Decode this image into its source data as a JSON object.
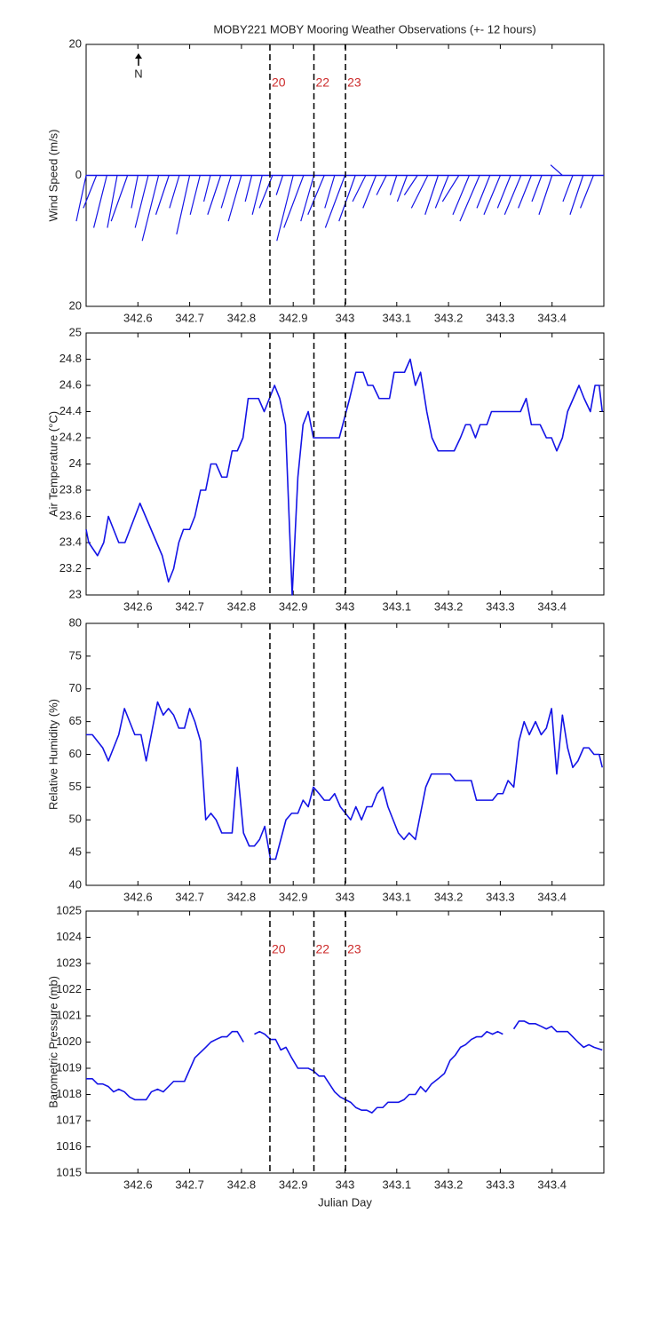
{
  "chart_data": [
    {
      "type": "stick",
      "title": "MOBY221 MOBY Mooring Weather Observations (+- 12 hours)",
      "ylabel": "Wind Speed (m/s)",
      "annotation": "N",
      "color": "#1414e6",
      "xlim": [
        342.5,
        343.5
      ],
      "xticks": [
        342.6,
        342.7,
        342.8,
        342.9,
        343,
        343.1,
        343.2,
        343.3,
        343.4
      ],
      "ylim": [
        -20,
        20
      ],
      "yticks": [
        20,
        0,
        {
          "value": -20,
          "label": "20"
        }
      ],
      "events": {
        "x": [
          342.855,
          342.94,
          343.001
        ],
        "labels": [
          "20",
          "22",
          "23"
        ],
        "color": "#cc2a2a"
      },
      "x": [
        342.5,
        342.52,
        342.54,
        342.56,
        342.58,
        342.6,
        342.62,
        342.64,
        342.66,
        342.68,
        342.7,
        342.72,
        342.74,
        342.76,
        342.78,
        342.8,
        342.82,
        342.84,
        342.86,
        342.88,
        342.9,
        342.92,
        342.94,
        342.96,
        342.98,
        343,
        343.02,
        343.04,
        343.06,
        343.08,
        343.1,
        343.12,
        343.14,
        343.16,
        343.18,
        343.2,
        343.22,
        343.24,
        343.26,
        343.28,
        343.3,
        343.32,
        343.34,
        343.36,
        343.38,
        343.4,
        343.42,
        343.44,
        343.46,
        343.48
      ],
      "u": [
        -1.5,
        -2,
        -2,
        -1.5,
        -2.5,
        -1,
        -2,
        -2.5,
        -2,
        -1.5,
        -2,
        -1.5,
        -1,
        -2,
        -1.5,
        -2,
        -1,
        -1.5,
        -2,
        -1,
        -2.5,
        -3,
        -2,
        -2.5,
        -1.5,
        -3,
        -2.5,
        -2,
        -2,
        -1.5,
        -1,
        -1.5,
        -2,
        -2.5,
        -2,
        -2,
        -2.5,
        -2.5,
        -3,
        -2,
        -2.5,
        -2,
        -2.5,
        -2,
        -1.5,
        -2,
        -1.8,
        -1.5,
        -2,
        -2
      ],
      "v": [
        -7,
        -5,
        -8,
        -8,
        -7,
        -5,
        -8,
        -10,
        -6,
        -5,
        -9,
        -6,
        -4,
        -6,
        -5,
        -7,
        -4,
        -6,
        -5,
        -3,
        -10,
        -8,
        -7,
        -6,
        -5,
        -8,
        -7,
        -4,
        -5,
        -3,
        -3,
        -4,
        -3,
        -5,
        -6,
        -5,
        -4,
        -6,
        -7,
        -5,
        -6,
        -5,
        -6,
        -5,
        -4,
        -6,
        1.6,
        -4,
        -6,
        -5
      ]
    },
    {
      "type": "line",
      "ylabel": "Air Temperature (°C)",
      "color": "#1414e6",
      "xlim": [
        342.5,
        343.5
      ],
      "xticks": [
        342.6,
        342.7,
        342.8,
        342.9,
        343,
        343.1,
        343.2,
        343.3,
        343.4
      ],
      "ylim": [
        23,
        25
      ],
      "yticks": [
        23,
        23.2,
        23.4,
        23.6,
        23.8,
        24,
        24.2,
        24.4,
        24.6,
        24.8,
        25
      ],
      "events": {
        "x": [
          342.855,
          342.94,
          343.001
        ]
      },
      "x": [
        342.5,
        342.505,
        342.522,
        342.534,
        342.543,
        342.553,
        342.563,
        342.575,
        342.604,
        342.647,
        342.659,
        342.669,
        342.679,
        342.688,
        342.7,
        342.71,
        342.721,
        342.731,
        342.741,
        342.751,
        342.762,
        342.772,
        342.782,
        342.792,
        342.803,
        342.813,
        342.833,
        342.844,
        342.864,
        342.874,
        342.885,
        342.898,
        342.909,
        342.919,
        342.929,
        342.939,
        342.989,
        343.009,
        343.021,
        343.035,
        343.044,
        343.054,
        343.066,
        343.086,
        343.095,
        343.115,
        343.126,
        343.136,
        343.146,
        343.158,
        343.168,
        343.18,
        343.211,
        343.223,
        343.233,
        343.242,
        343.252,
        343.261,
        343.274,
        343.283,
        343.339,
        343.35,
        343.36,
        343.377,
        343.389,
        343.399,
        343.409,
        343.42,
        343.43,
        343.452,
        343.462,
        343.474,
        343.483,
        343.491,
        343.497
      ],
      "values": [
        23.5,
        23.4,
        23.3,
        23.4,
        23.6,
        23.5,
        23.4,
        23.4,
        23.7,
        23.3,
        23.1,
        23.2,
        23.4,
        23.5,
        23.5,
        23.6,
        23.8,
        23.8,
        24.0,
        24.0,
        23.9,
        23.9,
        24.1,
        24.1,
        24.2,
        24.5,
        24.5,
        24.4,
        24.6,
        24.5,
        24.3,
        23.0,
        23.9,
        24.3,
        24.4,
        24.2,
        24.2,
        24.5,
        24.7,
        24.7,
        24.6,
        24.6,
        24.5,
        24.5,
        24.7,
        24.7,
        24.8,
        24.6,
        24.7,
        24.4,
        24.2,
        24.1,
        24.1,
        24.2,
        24.3,
        24.3,
        24.2,
        24.3,
        24.3,
        24.4,
        24.4,
        24.5,
        24.3,
        24.3,
        24.2,
        24.2,
        24.1,
        24.2,
        24.4,
        24.6,
        24.5,
        24.4,
        24.6,
        24.6,
        24.4
      ]
    },
    {
      "type": "line",
      "ylabel": "Relative Humidity (%)",
      "color": "#1414e6",
      "xlim": [
        342.5,
        343.5
      ],
      "xticks": [
        342.6,
        342.7,
        342.8,
        342.9,
        343,
        343.1,
        343.2,
        343.3,
        343.4
      ],
      "ylim": [
        40,
        80
      ],
      "yticks": [
        40,
        45,
        50,
        55,
        60,
        65,
        70,
        75,
        80
      ],
      "events": {
        "x": [
          342.855,
          342.94,
          343.001
        ]
      },
      "x": [
        342.5,
        342.512,
        342.532,
        342.543,
        342.553,
        342.563,
        342.574,
        342.594,
        342.606,
        342.616,
        342.638,
        342.649,
        342.659,
        342.669,
        342.679,
        342.69,
        342.7,
        342.71,
        342.721,
        342.731,
        342.741,
        342.751,
        342.762,
        342.782,
        342.792,
        342.804,
        342.815,
        342.825,
        342.835,
        342.845,
        342.856,
        342.866,
        342.876,
        342.886,
        342.897,
        342.909,
        342.919,
        342.929,
        342.939,
        342.95,
        342.96,
        342.97,
        342.98,
        342.991,
        343.001,
        343.011,
        343.021,
        343.032,
        343.042,
        343.052,
        343.062,
        343.073,
        343.083,
        343.093,
        343.103,
        343.114,
        343.124,
        343.136,
        343.146,
        343.156,
        343.167,
        343.203,
        343.213,
        343.244,
        343.254,
        343.285,
        343.295,
        343.305,
        343.315,
        343.326,
        343.336,
        343.346,
        343.356,
        343.368,
        343.379,
        343.389,
        343.399,
        343.409,
        343.42,
        343.43,
        343.44,
        343.45,
        343.461,
        343.471,
        343.481,
        343.491,
        343.497
      ],
      "values": [
        63,
        63,
        61,
        59,
        61,
        63,
        67,
        63,
        63,
        59,
        68,
        66,
        67,
        66,
        64,
        64,
        67,
        65,
        62,
        50,
        51,
        50,
        48,
        48,
        58,
        48,
        46,
        46,
        47,
        49,
        44,
        44,
        47,
        50,
        51,
        51,
        53,
        52,
        55,
        54,
        53,
        53,
        54,
        52,
        51,
        50,
        52,
        50,
        52,
        52,
        54,
        55,
        52,
        50,
        48,
        47,
        48,
        47,
        51,
        55,
        57,
        57,
        56,
        56,
        53,
        53,
        54,
        54,
        56,
        55,
        62,
        65,
        63,
        65,
        63,
        64,
        67,
        57,
        66,
        61,
        58,
        59,
        61,
        61,
        60,
        60,
        58
      ]
    },
    {
      "type": "line",
      "ylabel": "Barometric Pressure (mb)",
      "xlabel": "Julian Day",
      "color": "#1414e6",
      "xlim": [
        342.5,
        343.5
      ],
      "xticks": [
        342.6,
        342.7,
        342.8,
        342.9,
        343,
        343.1,
        343.2,
        343.3,
        343.4
      ],
      "ylim": [
        1015,
        1025
      ],
      "yticks": [
        1015,
        1016,
        1017,
        1018,
        1019,
        1020,
        1021,
        1022,
        1023,
        1024,
        1025
      ],
      "events": {
        "x": [
          342.855,
          342.94,
          343.001
        ],
        "labels": [
          "20",
          "22",
          "23"
        ],
        "color": "#cc2a2a"
      },
      "x": [
        342.5,
        342.512,
        342.522,
        342.532,
        342.543,
        342.553,
        342.563,
        342.574,
        342.584,
        342.594,
        342.616,
        342.626,
        342.638,
        342.649,
        342.669,
        342.69,
        342.71,
        342.731,
        342.741,
        342.751,
        342.762,
        342.772,
        342.782,
        342.792,
        342.804,
        342.815,
        342.825,
        342.835,
        342.845,
        342.856,
        342.866,
        342.876,
        342.886,
        342.897,
        342.909,
        342.929,
        342.939,
        342.95,
        342.96,
        342.97,
        342.98,
        342.991,
        343.001,
        343.011,
        343.021,
        343.032,
        343.042,
        343.052,
        343.062,
        343.073,
        343.083,
        343.103,
        343.114,
        343.124,
        343.136,
        343.146,
        343.156,
        343.167,
        343.18,
        343.192,
        343.203,
        343.213,
        343.223,
        343.233,
        343.244,
        343.254,
        343.264,
        343.274,
        343.285,
        343.295,
        343.305,
        343.315,
        343.326,
        343.336,
        343.346,
        343.356,
        343.368,
        343.379,
        343.389,
        343.399,
        343.409,
        343.43,
        343.44,
        343.45,
        343.461,
        343.471,
        343.481,
        343.497
      ],
      "values": [
        1018.6,
        1018.6,
        1018.4,
        1018.4,
        1018.3,
        1018.1,
        1018.2,
        1018.1,
        1017.9,
        1017.8,
        1017.8,
        1018.1,
        1018.2,
        1018.1,
        1018.5,
        1018.5,
        1019.4,
        1019.8,
        1020.0,
        1020.1,
        1020.2,
        1020.2,
        1020.4,
        1020.4,
        1020.0,
        null,
        1020.3,
        1020.4,
        1020.3,
        1020.1,
        1020.1,
        1019.7,
        1019.8,
        1019.4,
        1019.0,
        1019.0,
        1018.9,
        1018.7,
        1018.7,
        1018.4,
        1018.1,
        1017.9,
        1017.8,
        1017.7,
        1017.5,
        1017.4,
        1017.4,
        1017.3,
        1017.5,
        1017.5,
        1017.7,
        1017.7,
        1017.8,
        1018.0,
        1018.0,
        1018.3,
        1018.1,
        1018.4,
        1018.6,
        1018.8,
        1019.3,
        1019.5,
        1019.8,
        1019.9,
        1020.1,
        1020.2,
        1020.2,
        1020.4,
        1020.3,
        1020.4,
        1020.3,
        null,
        1020.5,
        1020.8,
        1020.8,
        1020.7,
        1020.7,
        1020.6,
        1020.5,
        1020.6,
        1020.4,
        1020.4,
        1020.2,
        1020.0,
        1019.8,
        1019.9,
        1019.8,
        1019.7
      ]
    }
  ]
}
